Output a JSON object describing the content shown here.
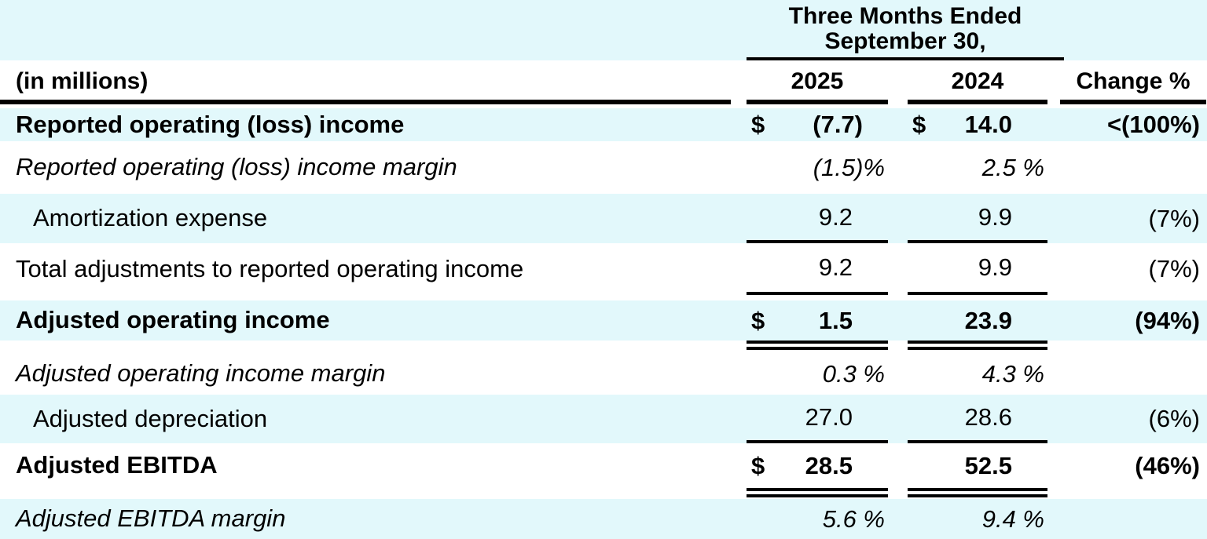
{
  "header": {
    "period_title_line1": "Three Months Ended",
    "period_title_line2": "September 30,",
    "unit_label": "(in millions)",
    "col_2025": "2025",
    "col_2024": "2024",
    "col_change": "Change %"
  },
  "rows": [
    {
      "label": "Reported operating (loss) income",
      "style": "bold",
      "indent": false,
      "d2025": "$",
      "v2025": "(7.7)",
      "d2024": "$",
      "v2024": "14.0",
      "change": "<(100%)",
      "rule": "none",
      "margin_row": false
    },
    {
      "label": "Reported operating (loss) income margin",
      "style": "italic",
      "indent": false,
      "d2025": "",
      "v2025": "(1.5)%",
      "d2024": "",
      "v2024": "2.5 %",
      "change": "",
      "rule": "none",
      "margin_row": true
    },
    {
      "label": "Amortization expense",
      "style": "regular",
      "indent": true,
      "d2025": "",
      "v2025": "9.2",
      "d2024": "",
      "v2024": "9.9",
      "change": "(7%)",
      "rule": "single",
      "margin_row": false
    },
    {
      "label": "Total adjustments to reported operating income",
      "style": "regular",
      "indent": false,
      "d2025": "",
      "v2025": "9.2",
      "d2024": "",
      "v2024": "9.9",
      "change": "(7%)",
      "rule": "single",
      "margin_row": false
    },
    {
      "label": "Adjusted operating income",
      "style": "bold",
      "indent": false,
      "d2025": "$",
      "v2025": "1.5",
      "d2024": "",
      "v2024": "23.9",
      "change": "(94%)",
      "rule": "double",
      "margin_row": false
    },
    {
      "label": "Adjusted operating income margin",
      "style": "italic",
      "indent": false,
      "d2025": "",
      "v2025": "0.3 %",
      "d2024": "",
      "v2024": "4.3 %",
      "change": "",
      "rule": "none",
      "margin_row": true
    },
    {
      "label": "Adjusted depreciation",
      "style": "regular",
      "indent": true,
      "d2025": "",
      "v2025": "27.0",
      "d2024": "",
      "v2024": "28.6",
      "change": "(6%)",
      "rule": "single",
      "margin_row": false
    },
    {
      "label": "Adjusted EBITDA",
      "style": "bold",
      "indent": false,
      "d2025": "$",
      "v2025": "28.5",
      "d2024": "",
      "v2024": "52.5",
      "change": "(46%)",
      "rule": "double",
      "margin_row": false
    },
    {
      "label": "Adjusted EBITDA margin",
      "style": "italic",
      "indent": false,
      "d2025": "",
      "v2025": "5.6 %",
      "d2024": "",
      "v2024": "9.4 %",
      "change": "",
      "rule": "none",
      "margin_row": true
    }
  ],
  "colors": {
    "row_band": "#E2F8FB",
    "text": "#000000",
    "rule": "#000000"
  }
}
